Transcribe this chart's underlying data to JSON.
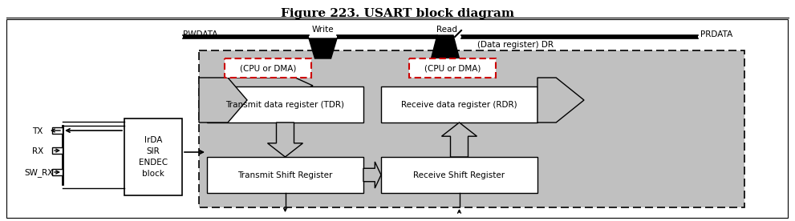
{
  "title": "Figure 223. USART block diagram",
  "title_fontsize": 11,
  "title_fontweight": "bold",
  "bg_color": "#ffffff",
  "gray_fill": "#c0c0c0",
  "white_fill": "#ffffff",
  "red_border": "#cc0000",
  "fig_width": 9.91,
  "fig_height": 2.76,
  "labels": {
    "pwdata": "PWDATA",
    "prdata": "PRDATA",
    "write": "Write",
    "read": "Read",
    "dr": "(Data register) DR",
    "cpu_dma_left": "(CPU or DMA)",
    "cpu_dma_right": "(CPU or DMA)",
    "tdr": "Transmit data register (TDR)",
    "rdr": "Receive data register (RDR)",
    "tsr": "Transmit Shift Register",
    "rsr": "Receive Shift Register",
    "irda": "IrDA\nSIR\nENDEC\nblock",
    "tx": "TX",
    "rx": "RX",
    "sw_rx": "SW_RX"
  }
}
